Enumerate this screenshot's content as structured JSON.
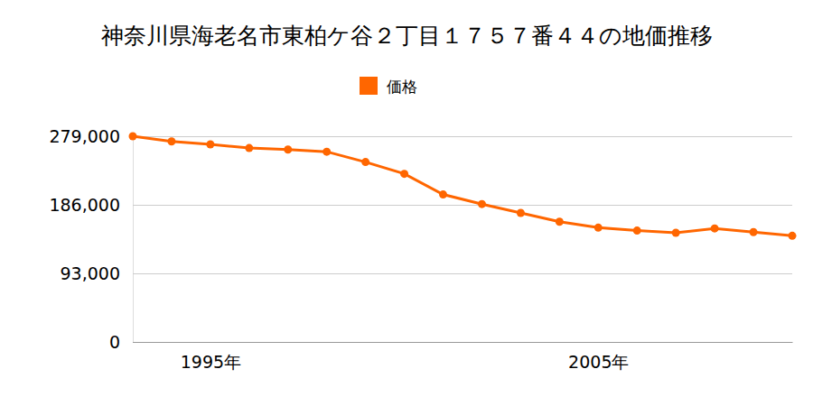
{
  "chart_data": {
    "type": "line",
    "title": "神奈川県海老名市東柏ケ谷２丁目１７５７番４４の地価推移",
    "x": [
      1993,
      1994,
      1995,
      1996,
      1997,
      1998,
      1999,
      2000,
      2001,
      2002,
      2003,
      2004,
      2005,
      2006,
      2007,
      2008,
      2009,
      2010
    ],
    "series": [
      {
        "name": "価格",
        "color": "#ff6600",
        "marker": "circle",
        "values": [
          279000,
          272000,
          268000,
          263000,
          261000,
          258000,
          244000,
          228000,
          200000,
          187000,
          175000,
          163000,
          155000,
          151000,
          148000,
          154000,
          149000,
          144000
        ]
      }
    ],
    "xlim": [
      1993,
      2010
    ],
    "xticks": [
      {
        "value": 1995,
        "label": "1995年"
      },
      {
        "value": 2005,
        "label": "2005年"
      }
    ],
    "ylim": [
      0,
      279000
    ],
    "yticks": [
      {
        "value": 0,
        "label": "0"
      },
      {
        "value": 93000,
        "label": "93,000"
      },
      {
        "value": 186000,
        "label": "186,000"
      },
      {
        "value": 279000,
        "label": "279,000"
      }
    ],
    "grid": true,
    "legend": "top"
  }
}
